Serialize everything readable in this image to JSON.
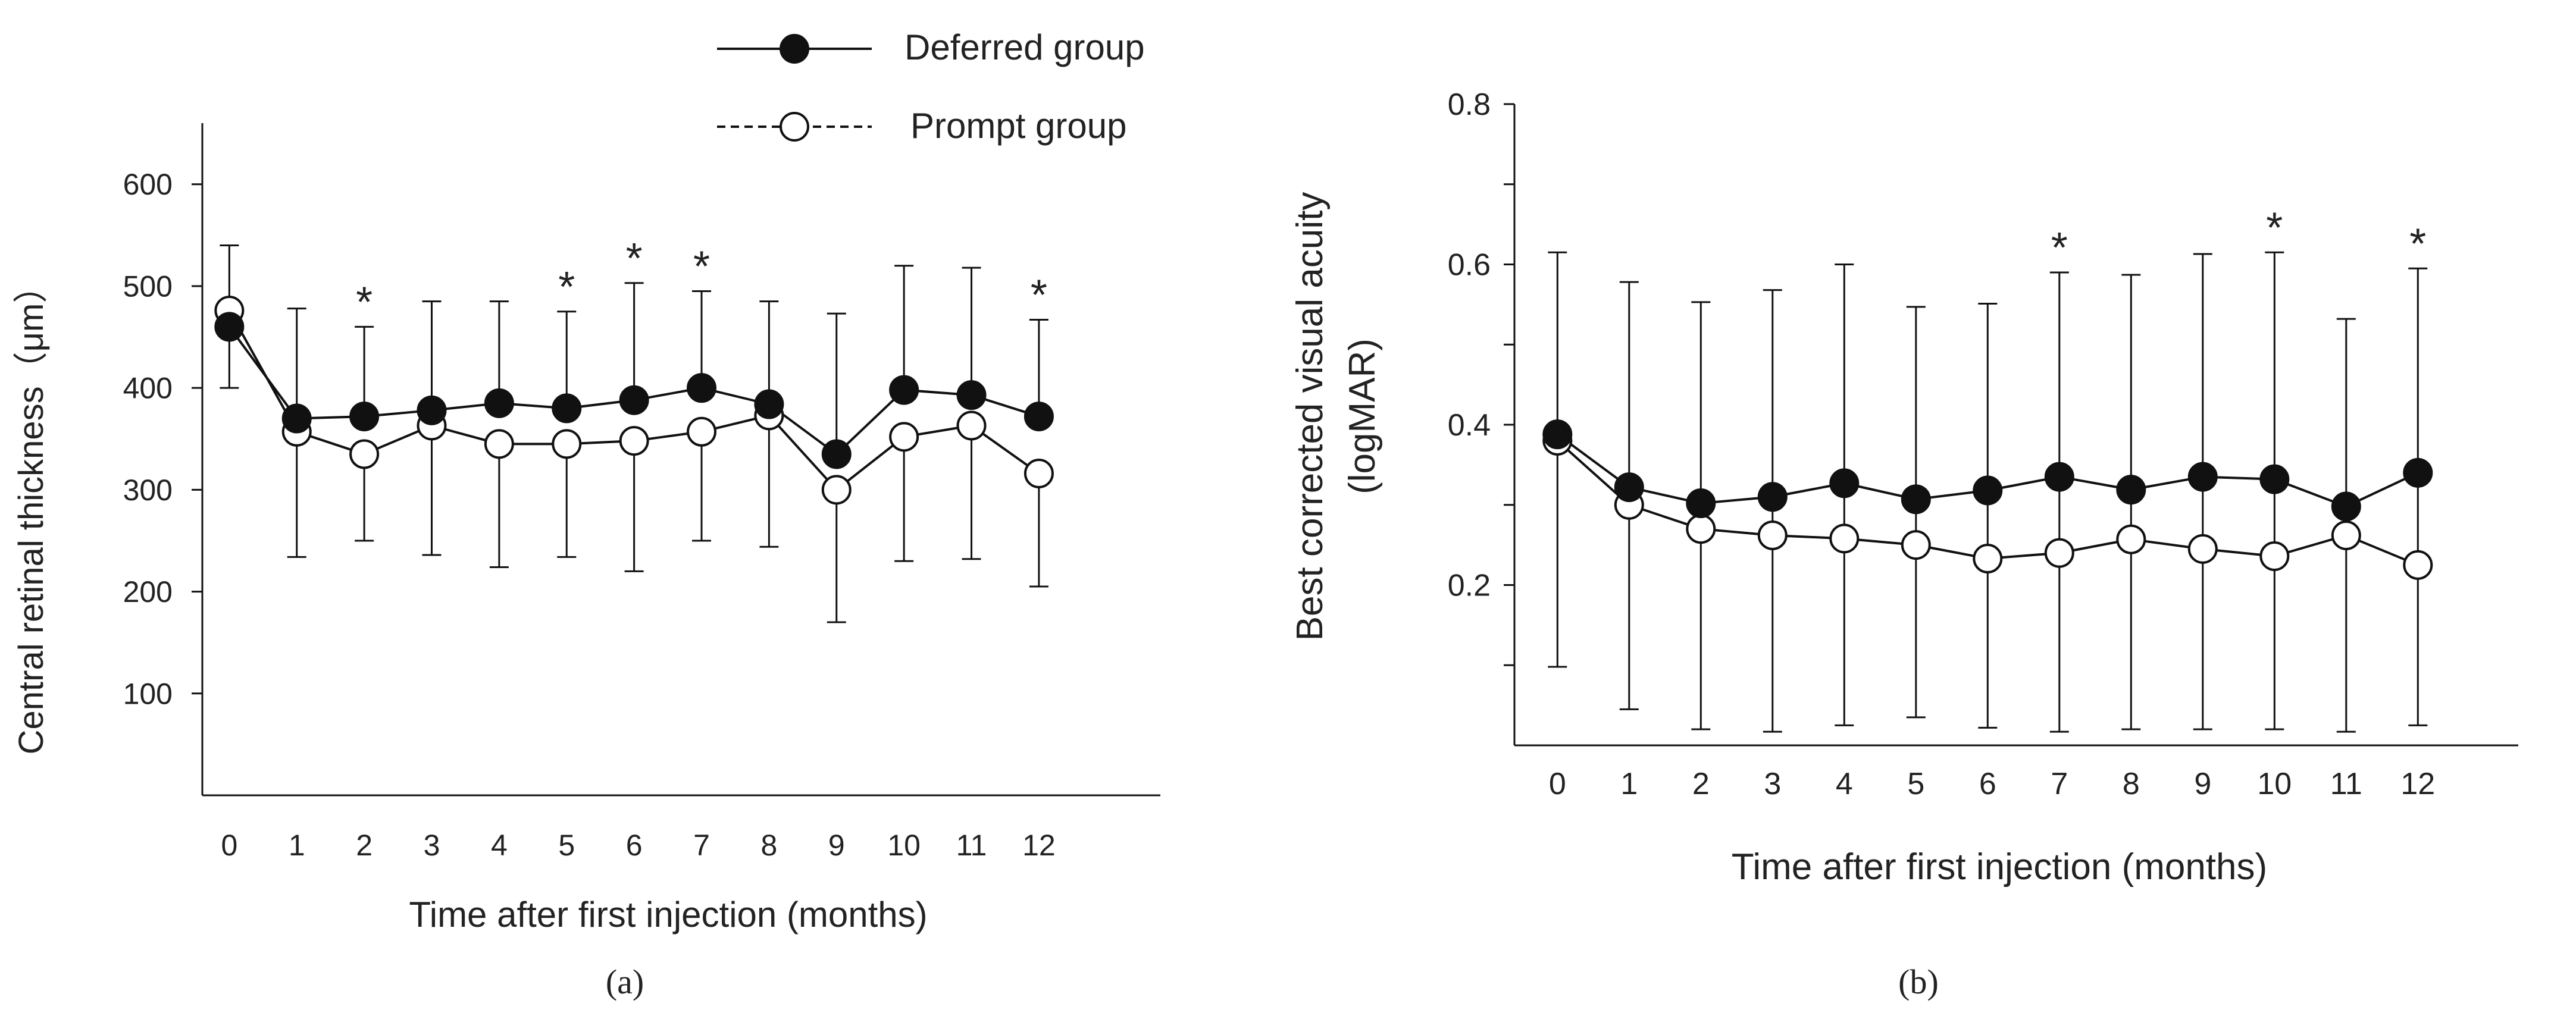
{
  "legend": {
    "position": "top-center",
    "entries": [
      {
        "label": "Deferred group",
        "marker": "filled-circle",
        "line": "solid"
      },
      {
        "label": "Prompt group",
        "marker": "open-circle",
        "line": "dashed"
      }
    ]
  },
  "panel_labels": {
    "a": "(a)",
    "b": "(b)"
  },
  "chart_data": [
    {
      "id": "a",
      "type": "line",
      "title": "",
      "xlabel": "Time  after first injection (months)",
      "ylabel": "Central retinal thickness（μm）",
      "x": [
        0,
        1,
        2,
        3,
        4,
        5,
        6,
        7,
        8,
        9,
        10,
        11,
        12
      ],
      "x_tick_labels": [
        "0",
        "1",
        "2",
        "3",
        "4",
        "5",
        "6",
        "7",
        "8",
        "9",
        "10",
        "11",
        "12"
      ],
      "xlim": [
        -0.4,
        13.8
      ],
      "ylim": [
        0,
        660
      ],
      "y_ticks": [
        100,
        200,
        300,
        400,
        500,
        600
      ],
      "y_tick_labels": [
        "100",
        "200",
        "300",
        "400",
        "500",
        "600"
      ],
      "grid": false,
      "series": [
        {
          "name": "Deferred group",
          "marker": "filled",
          "values": [
            460,
            370,
            372,
            378,
            385,
            380,
            388,
            400,
            384,
            335,
            398,
            393,
            372
          ],
          "error_upper": [
            540,
            478,
            460,
            485,
            485,
            475,
            503,
            495,
            485,
            473,
            520,
            518,
            467
          ],
          "error_lower": []
        },
        {
          "name": "Prompt group",
          "marker": "open",
          "values": [
            476,
            357,
            335,
            363,
            345,
            345,
            348,
            357,
            373,
            300,
            352,
            363,
            316
          ],
          "error_upper": [],
          "error_lower": [
            400,
            234,
            250,
            236,
            224,
            234,
            220,
            250,
            244,
            170,
            230,
            232,
            205
          ]
        }
      ],
      "significance": {
        "symbol": "*",
        "x": [
          2,
          5,
          6,
          7,
          12
        ]
      }
    },
    {
      "id": "b",
      "type": "line",
      "title": "",
      "xlabel": "Time  after first injection (months)",
      "ylabel_lines": [
        "Best corrected visual acuity",
        "(logMAR)"
      ],
      "x": [
        0,
        1,
        2,
        3,
        4,
        5,
        6,
        7,
        8,
        9,
        10,
        11,
        12
      ],
      "x_tick_labels": [
        "0",
        "1",
        "2",
        "3",
        "4",
        "5",
        "6",
        "7",
        "8",
        "9",
        "10",
        "11",
        "12"
      ],
      "xlim": [
        -0.6,
        13.4
      ],
      "ylim": [
        0,
        0.8
      ],
      "y_ticks": [
        0.1,
        0.2,
        0.3,
        0.4,
        0.5,
        0.6,
        0.7,
        0.8
      ],
      "y_tick_labels": [
        "",
        "0.2",
        "",
        "0.4",
        "",
        "0.6",
        "",
        "0.8"
      ],
      "grid": false,
      "series": [
        {
          "name": "Deferred group",
          "marker": "filled",
          "values": [
            0.388,
            0.322,
            0.302,
            0.31,
            0.327,
            0.307,
            0.318,
            0.335,
            0.319,
            0.335,
            0.332,
            0.298,
            0.34
          ],
          "error_upper": [
            0.615,
            0.578,
            0.553,
            0.568,
            0.6,
            0.547,
            0.551,
            0.59,
            0.587,
            0.613,
            0.615,
            0.532,
            0.595
          ],
          "error_lower": [
            0.098,
            0.045,
            0.02,
            0.017,
            0.025,
            0.035,
            0.022,
            0.017,
            0.02,
            0.02,
            0.02,
            0.017,
            0.025
          ]
        },
        {
          "name": "Prompt group",
          "marker": "open",
          "values": [
            0.38,
            0.3,
            0.27,
            0.262,
            0.258,
            0.25,
            0.233,
            0.24,
            0.257,
            0.245,
            0.236,
            0.262,
            0.225
          ],
          "error_upper": [],
          "error_lower": []
        }
      ],
      "significance": {
        "symbol": "*",
        "x": [
          7,
          10,
          12
        ]
      }
    }
  ]
}
